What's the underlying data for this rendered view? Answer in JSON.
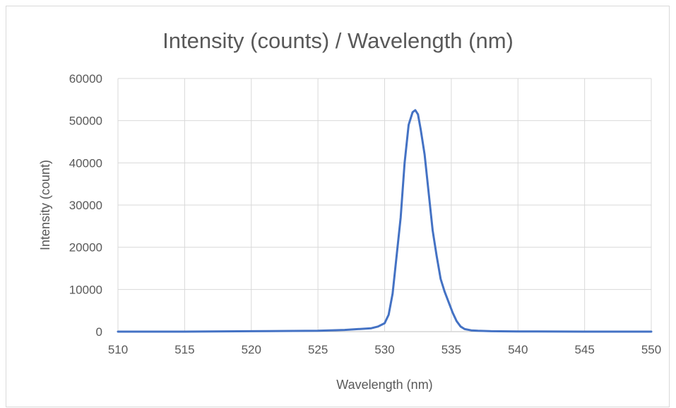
{
  "chart_data": {
    "type": "line",
    "title": "Intensity (counts) / Wavelength (nm)",
    "xlabel": "Wavelength (nm)",
    "ylabel": "Intensity (count)",
    "xlim": [
      510,
      550
    ],
    "ylim": [
      0,
      60000
    ],
    "x_ticks": [
      "510",
      "515",
      "520",
      "525",
      "530",
      "535",
      "540",
      "545",
      "550"
    ],
    "y_ticks": [
      "0",
      "10000",
      "20000",
      "30000",
      "40000",
      "50000",
      "60000"
    ],
    "grid": true,
    "legend": "none",
    "series": [
      {
        "color": "#4472c4",
        "x": [
          510,
          515,
          520,
          525,
          527,
          528,
          529,
          529.5,
          530,
          530.3,
          530.6,
          530.9,
          531.2,
          531.5,
          531.8,
          532.1,
          532.3,
          532.5,
          532.7,
          533,
          533.3,
          533.6,
          533.9,
          534.2,
          534.5,
          534.8,
          535.1,
          535.4,
          535.7,
          536,
          536.5,
          537,
          538,
          540,
          545,
          550
        ],
        "y": [
          0,
          0,
          100,
          200,
          400,
          600,
          800,
          1200,
          2000,
          4000,
          9000,
          18000,
          27000,
          40000,
          49000,
          52000,
          52500,
          51500,
          48000,
          42000,
          33000,
          24000,
          18000,
          12500,
          9500,
          7000,
          4500,
          2500,
          1200,
          600,
          300,
          200,
          100,
          50,
          0,
          0
        ]
      }
    ]
  }
}
